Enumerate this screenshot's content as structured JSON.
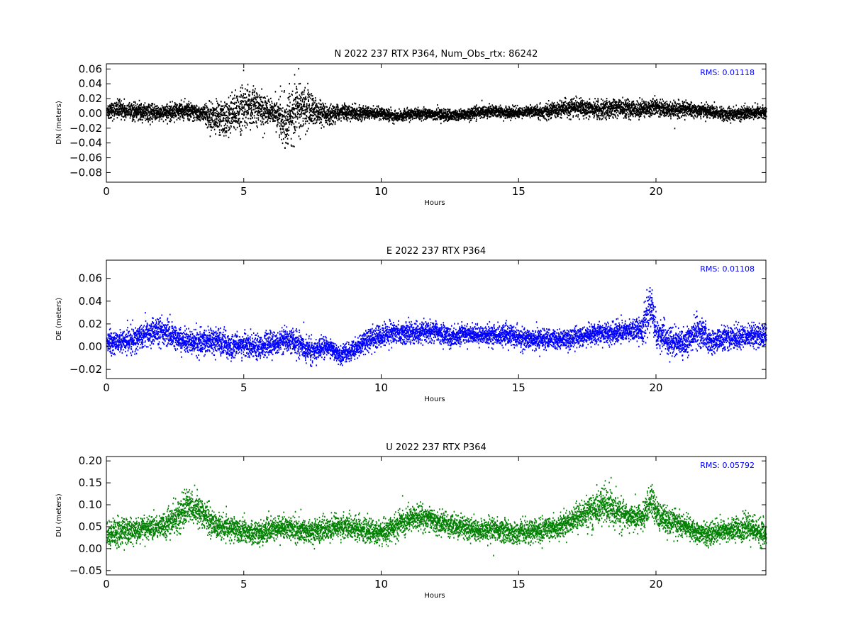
{
  "chart_data": [
    {
      "type": "scatter",
      "title": "N 2022 237 RTX  P364, Num_Obs_rtx: 86242",
      "xlabel": "Hours",
      "ylabel": "DN (meters)",
      "annotation": "RMS:  0.01118",
      "color": "#000000",
      "annotation_color": "#0000ff",
      "xlim": [
        0,
        24
      ],
      "ylim": [
        -0.093,
        0.067
      ],
      "xticks": [
        0,
        5,
        10,
        15,
        20
      ],
      "xtick_labels": [
        "0",
        "5",
        "10",
        "15",
        "20"
      ],
      "yticks": [
        0.06,
        0.04,
        0.02,
        0.0,
        -0.02,
        -0.04,
        -0.06,
        -0.08
      ],
      "ytick_labels": [
        "0.06",
        "0.04",
        "0.02",
        "0.00",
        "−0.02",
        "−0.04",
        "−0.06",
        "−0.08"
      ],
      "grid": false,
      "series": [
        {
          "x": [
            0,
            0.5,
            1,
            1.5,
            2,
            2.5,
            3,
            3.5,
            4,
            4.5,
            5,
            5.5,
            6,
            6.5,
            7,
            7.5,
            8,
            8.5,
            9,
            9.5,
            10,
            10.5,
            11,
            11.5,
            12,
            12.5,
            13,
            13.5,
            14,
            14.5,
            15,
            15.5,
            16,
            16.5,
            17,
            17.5,
            18,
            18.5,
            19,
            19.5,
            20,
            20.5,
            21,
            21.5,
            22,
            22.5,
            23,
            23.5,
            24
          ],
          "y": [
            0.004,
            0.005,
            0.003,
            0.002,
            0.0,
            0.004,
            0.002,
            0.0,
            -0.008,
            -0.004,
            0.01,
            0.008,
            0.002,
            -0.01,
            0.008,
            0.005,
            -0.004,
            0.002,
            0.001,
            0.0,
            0.0,
            -0.004,
            -0.002,
            0.0,
            -0.001,
            -0.003,
            -0.002,
            0.002,
            0.003,
            0.001,
            0.001,
            0.003,
            0.002,
            0.006,
            0.008,
            0.006,
            0.004,
            0.008,
            0.006,
            0.006,
            0.008,
            0.005,
            0.006,
            0.004,
            0.002,
            -0.002,
            0.0,
            0.002,
            0.0
          ],
          "spread": [
            0.012,
            0.012,
            0.011,
            0.01,
            0.01,
            0.011,
            0.011,
            0.012,
            0.024,
            0.026,
            0.028,
            0.024,
            0.014,
            0.032,
            0.036,
            0.02,
            0.012,
            0.01,
            0.009,
            0.008,
            0.008,
            0.007,
            0.007,
            0.007,
            0.007,
            0.007,
            0.007,
            0.008,
            0.008,
            0.008,
            0.007,
            0.008,
            0.009,
            0.01,
            0.011,
            0.011,
            0.012,
            0.012,
            0.012,
            0.011,
            0.011,
            0.011,
            0.01,
            0.009,
            0.009,
            0.009,
            0.009,
            0.009,
            0.01
          ]
        }
      ]
    },
    {
      "type": "scatter",
      "title": "E 2022 237 RTX  P364",
      "xlabel": "Hours",
      "ylabel": "DE (meters)",
      "annotation": "RMS:  0.01108",
      "color": "#0000ff",
      "annotation_color": "#0000ff",
      "xlim": [
        0,
        24
      ],
      "ylim": [
        -0.028,
        0.076
      ],
      "xticks": [
        0,
        5,
        10,
        15,
        20
      ],
      "xtick_labels": [
        "0",
        "5",
        "10",
        "15",
        "20"
      ],
      "yticks": [
        0.06,
        0.04,
        0.02,
        0.0,
        -0.02
      ],
      "ytick_labels": [
        "0.06",
        "0.04",
        "0.02",
        "0.00",
        "−0.02"
      ],
      "grid": false,
      "series": [
        {
          "x": [
            0,
            0.5,
            1,
            1.5,
            2,
            2.5,
            3,
            3.5,
            4,
            4.5,
            5,
            5.5,
            6,
            6.5,
            7,
            7.5,
            8,
            8.5,
            9,
            9.5,
            10,
            10.5,
            11,
            11.5,
            12,
            12.5,
            13,
            13.5,
            14,
            14.5,
            15,
            15.5,
            16,
            16.5,
            17,
            17.5,
            18,
            18.5,
            19,
            19.5,
            19.8,
            20,
            20.5,
            21,
            21.5,
            22,
            22.5,
            23,
            23.5,
            24
          ],
          "y": [
            0.004,
            0.004,
            0.006,
            0.012,
            0.014,
            0.008,
            0.004,
            0.004,
            0.006,
            0.0,
            0.002,
            0.0,
            0.002,
            0.006,
            0.002,
            -0.004,
            0.0,
            -0.008,
            -0.002,
            0.006,
            0.01,
            0.012,
            0.012,
            0.012,
            0.014,
            0.008,
            0.012,
            0.01,
            0.01,
            0.01,
            0.008,
            0.006,
            0.006,
            0.006,
            0.008,
            0.01,
            0.012,
            0.012,
            0.014,
            0.016,
            0.036,
            0.012,
            0.004,
            0.002,
            0.014,
            0.004,
            0.008,
            0.008,
            0.01,
            0.01
          ],
          "spread": [
            0.009,
            0.009,
            0.01,
            0.012,
            0.012,
            0.01,
            0.01,
            0.011,
            0.011,
            0.01,
            0.01,
            0.01,
            0.01,
            0.01,
            0.01,
            0.01,
            0.008,
            0.007,
            0.008,
            0.01,
            0.01,
            0.009,
            0.009,
            0.009,
            0.008,
            0.008,
            0.008,
            0.008,
            0.008,
            0.009,
            0.009,
            0.009,
            0.008,
            0.008,
            0.008,
            0.009,
            0.009,
            0.009,
            0.009,
            0.012,
            0.02,
            0.014,
            0.012,
            0.011,
            0.014,
            0.01,
            0.01,
            0.01,
            0.01,
            0.01
          ]
        }
      ]
    },
    {
      "type": "scatter",
      "title": "U 2022 237 RTX  P364",
      "xlabel": "Hours",
      "ylabel": "DU (meters)",
      "annotation": "RMS:  0.05792",
      "color": "#008000",
      "annotation_color": "#0000ff",
      "xlim": [
        0,
        24
      ],
      "ylim": [
        -0.06,
        0.21
      ],
      "xticks": [
        0,
        5,
        10,
        15,
        20
      ],
      "xtick_labels": [
        "0",
        "5",
        "10",
        "15",
        "20"
      ],
      "yticks": [
        0.2,
        0.15,
        0.1,
        0.05,
        0.0,
        -0.05
      ],
      "ytick_labels": [
        "0.20",
        "0.15",
        "0.10",
        "0.05",
        "0.00",
        "−0.05"
      ],
      "grid": false,
      "series": [
        {
          "x": [
            0,
            0.5,
            1,
            1.5,
            2,
            2.5,
            3,
            3.5,
            4,
            4.5,
            5,
            5.5,
            6,
            6.5,
            7,
            7.5,
            8,
            8.5,
            9,
            9.5,
            10,
            10.5,
            11,
            11.5,
            12,
            12.5,
            13,
            13.5,
            14,
            14.5,
            15,
            15.5,
            16,
            16.5,
            17,
            17.5,
            18,
            18.5,
            19,
            19.5,
            19.8,
            20,
            20.5,
            21,
            21.5,
            22,
            22.5,
            23,
            23.5,
            24
          ],
          "y": [
            0.03,
            0.04,
            0.04,
            0.045,
            0.05,
            0.07,
            0.1,
            0.08,
            0.05,
            0.045,
            0.04,
            0.035,
            0.045,
            0.05,
            0.04,
            0.04,
            0.045,
            0.05,
            0.05,
            0.04,
            0.035,
            0.05,
            0.07,
            0.07,
            0.06,
            0.055,
            0.05,
            0.04,
            0.045,
            0.04,
            0.035,
            0.04,
            0.045,
            0.05,
            0.07,
            0.08,
            0.1,
            0.09,
            0.07,
            0.07,
            0.11,
            0.08,
            0.06,
            0.055,
            0.035,
            0.035,
            0.04,
            0.045,
            0.045,
            0.03
          ],
          "spread": [
            0.03,
            0.03,
            0.028,
            0.025,
            0.028,
            0.035,
            0.04,
            0.035,
            0.028,
            0.025,
            0.025,
            0.025,
            0.026,
            0.026,
            0.026,
            0.026,
            0.026,
            0.026,
            0.026,
            0.025,
            0.025,
            0.026,
            0.03,
            0.028,
            0.025,
            0.025,
            0.025,
            0.024,
            0.025,
            0.025,
            0.026,
            0.026,
            0.025,
            0.025,
            0.028,
            0.035,
            0.04,
            0.038,
            0.03,
            0.03,
            0.04,
            0.032,
            0.028,
            0.026,
            0.024,
            0.024,
            0.024,
            0.026,
            0.03,
            0.03
          ]
        }
      ]
    }
  ]
}
